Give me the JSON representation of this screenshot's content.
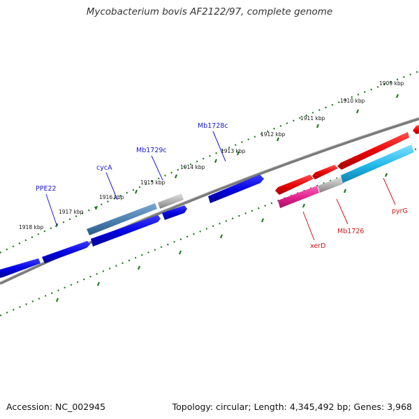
{
  "title": "Mycobacterium bovis AF2122/97, complete genome",
  "footer": {
    "accession": "Accession: NC_002945",
    "topology": "Topology: circular; Length: 4,345,492 bp; Genes: 3,968"
  },
  "kbp_labels": [
    "1918 kbp",
    "1917 kbp",
    "1916 kbp",
    "1915 kbp",
    "1914 kbp",
    "1913 kbp",
    "1912 kbp",
    "1911 kbp",
    "1910 kbp",
    "1909 kbp"
  ],
  "gene_labels": {
    "PPE22": "PPE22",
    "cycA": "cycA",
    "Mb1729c": "Mb1729c",
    "Mb1728c": "Mb1728c",
    "xerD": "xerD",
    "Mb1726": "Mb1726",
    "pyrG": "pyrG"
  },
  "colors": {
    "backbone": "#808080",
    "tick": "#1f7a1f",
    "reverse_gene": "#0a0ae0",
    "forward_gene": "#e01010",
    "cycA_gene": "#4a7fb0",
    "grey_gene": "#b0b0b0",
    "pink_gene": "#e0208c",
    "cyan_gene": "#20b8e8",
    "reverse_label": "#1a1ad0",
    "forward_label": "#cc1a1a"
  }
}
